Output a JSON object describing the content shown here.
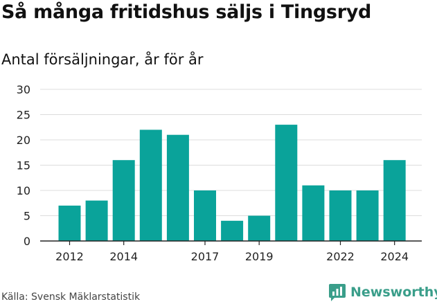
{
  "title": "Så många fritidshus säljs i Tingsryd",
  "subtitle": "Antal försäljningar, år för år",
  "source": "Källa: Svensk Mäklarstatistik",
  "brand": "Newsworthy",
  "colors": {
    "bar": "#0aa39a",
    "brand": "#3a9e8a",
    "grid": "#dcdcdc",
    "axis": "#222222"
  },
  "chart_data": {
    "type": "bar",
    "categories": [
      "2012",
      "2013",
      "2014",
      "2015",
      "2016",
      "2017",
      "2018",
      "2019",
      "2020",
      "2021",
      "2022",
      "2023",
      "2024"
    ],
    "values": [
      7,
      8,
      16,
      22,
      21,
      10,
      4,
      5,
      23,
      11,
      10,
      10,
      16
    ],
    "x_tick_labels": [
      "2012",
      "2014",
      "2017",
      "2019",
      "2022",
      "2024"
    ],
    "y_ticks": [
      0,
      5,
      10,
      15,
      20,
      25,
      30
    ],
    "ylim": [
      0,
      30
    ],
    "grid": true,
    "xlabel": "",
    "ylabel": ""
  }
}
